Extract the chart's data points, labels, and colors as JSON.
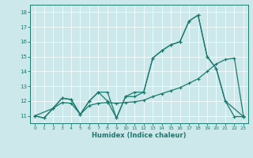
{
  "xlabel": "Humidex (Indice chaleur)",
  "bg_color": "#cce8eb",
  "grid_color": "#ffffff",
  "line_color": "#1a7a6e",
  "xlim": [
    -0.5,
    23.5
  ],
  "ylim": [
    10.5,
    18.5
  ],
  "xticks": [
    0,
    1,
    2,
    3,
    4,
    5,
    6,
    7,
    8,
    9,
    10,
    11,
    12,
    13,
    14,
    15,
    16,
    17,
    18,
    19,
    20,
    21,
    22,
    23
  ],
  "yticks": [
    11,
    12,
    13,
    14,
    15,
    16,
    17,
    18
  ],
  "series1_x": [
    0,
    1,
    2,
    3,
    4,
    5,
    6,
    7,
    8,
    9,
    10,
    11,
    12,
    13,
    14,
    15,
    16,
    17,
    18,
    19,
    20,
    21,
    22,
    23
  ],
  "series1_y": [
    11.0,
    10.85,
    11.5,
    12.2,
    12.1,
    11.1,
    12.0,
    12.6,
    12.6,
    10.85,
    12.3,
    12.6,
    12.6,
    14.9,
    15.4,
    15.8,
    16.0,
    17.4,
    17.8,
    15.0,
    14.2,
    12.0,
    10.95,
    10.95
  ],
  "series2_x": [
    0,
    2,
    3,
    4,
    5,
    6,
    7,
    8,
    9,
    10,
    11,
    12,
    13,
    14,
    15,
    16,
    17,
    18,
    19,
    20,
    21,
    23
  ],
  "series2_y": [
    11.0,
    11.5,
    12.2,
    12.1,
    11.1,
    12.0,
    12.6,
    12.0,
    10.85,
    12.3,
    12.3,
    12.6,
    14.9,
    15.4,
    15.8,
    16.0,
    17.4,
    17.8,
    15.0,
    14.2,
    12.0,
    10.95
  ],
  "series3_x": [
    0,
    1,
    2,
    3,
    4,
    5,
    6,
    7,
    8,
    9,
    10,
    11,
    12,
    13,
    14,
    15,
    16,
    17,
    18,
    19,
    20,
    21,
    22,
    23
  ],
  "series3_y": [
    11.0,
    10.85,
    11.5,
    11.9,
    11.85,
    11.1,
    11.7,
    11.85,
    11.9,
    11.85,
    11.9,
    11.95,
    12.05,
    12.3,
    12.5,
    12.7,
    12.9,
    13.2,
    13.5,
    14.0,
    14.5,
    14.8,
    14.9,
    11.0
  ]
}
